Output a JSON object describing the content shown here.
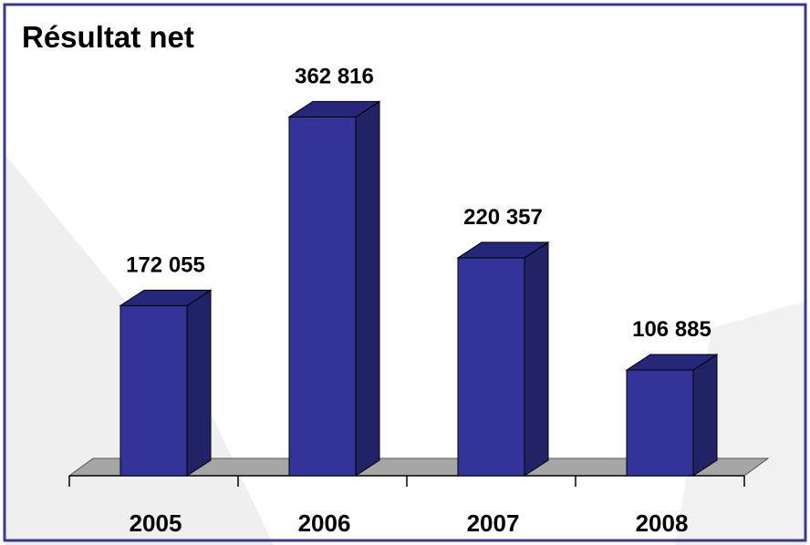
{
  "chart_data": {
    "type": "bar",
    "title": "Résultat net",
    "categories": [
      "2005",
      "2006",
      "2007",
      "2008"
    ],
    "values": [
      172055,
      362816,
      220357,
      106885
    ],
    "value_labels": [
      "172 055",
      "362 816",
      "220 357",
      "106 885"
    ],
    "xlabel": "",
    "ylabel": "",
    "ylim": [
      0,
      400000
    ],
    "grid": false,
    "legend": "none",
    "style": "3d-column"
  },
  "colors": {
    "bar_front": "#333399",
    "bar_side": "#222266",
    "bar_top": "#26267a",
    "floor": "#a6a6a6",
    "frame": "#3a3a8c",
    "watermark": "#ececec"
  }
}
